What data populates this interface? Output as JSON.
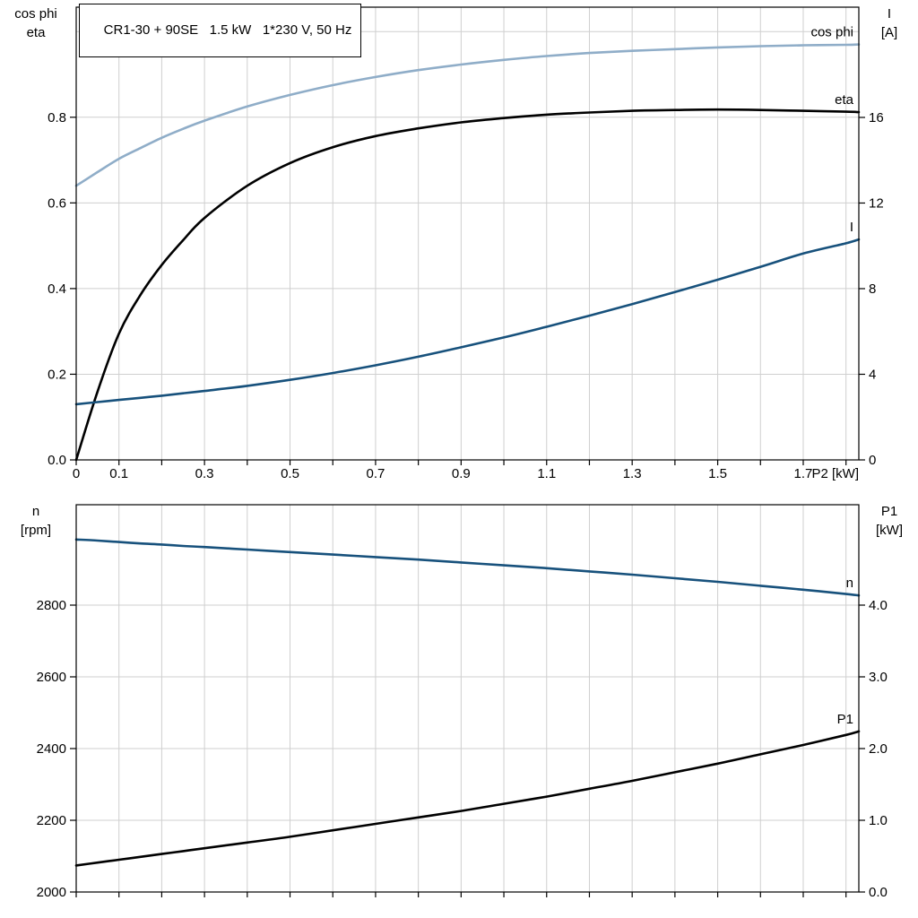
{
  "title_box": {
    "text": "CR1-30 + 90SE   1.5 kW   1*230 V, 50 Hz"
  },
  "colors": {
    "light_blue": "#8FADC8",
    "dark_blue": "#17517C",
    "black": "#000000",
    "grid": "#CFCFCF",
    "axis": "#000000"
  },
  "chart_data": [
    {
      "type": "line",
      "name": "motor-performance-curves",
      "x_axis": {
        "label": "P2 [kW]",
        "range": [
          0,
          1.83
        ],
        "grid_step": 0.1,
        "tick_values": [
          0,
          0.1,
          0.3,
          0.5,
          0.7,
          0.9,
          1.1,
          1.3,
          1.5,
          1.7
        ],
        "tick_labels": [
          "0",
          "0.1",
          "0.3",
          "0.5",
          "0.7",
          "0.9",
          "1.1",
          "1.3",
          "1.5",
          "1.7"
        ]
      },
      "left_axis": {
        "label_lines": [
          "cos phi",
          "eta"
        ],
        "range": [
          0,
          1.057
        ],
        "tick_values": [
          0,
          0.2,
          0.4,
          0.6,
          0.8
        ],
        "tick_labels": [
          "0.0",
          "0.2",
          "0.4",
          "0.6",
          "0.8"
        ],
        "grid_values": [
          0.2,
          0.4,
          0.6,
          0.8,
          1.0
        ]
      },
      "right_axis": {
        "label_lines": [
          "I",
          "[A]"
        ],
        "range": [
          0,
          21.15
        ],
        "tick_values": [
          0,
          4,
          8,
          12,
          16
        ],
        "tick_labels": [
          "0",
          "4",
          "8",
          "12",
          "16"
        ]
      },
      "x": [
        0,
        0.05,
        0.1,
        0.15,
        0.2,
        0.25,
        0.3,
        0.4,
        0.5,
        0.6,
        0.7,
        0.8,
        0.9,
        1.0,
        1.1,
        1.2,
        1.3,
        1.4,
        1.5,
        1.6,
        1.7,
        1.8,
        1.83
      ],
      "series": [
        {
          "name": "cos phi",
          "axis": "left",
          "color_key": "light_blue",
          "values": [
            0.64,
            0.672,
            0.703,
            0.728,
            0.752,
            0.773,
            0.792,
            0.825,
            0.852,
            0.875,
            0.894,
            0.91,
            0.923,
            0.934,
            0.943,
            0.95,
            0.955,
            0.959,
            0.963,
            0.966,
            0.968,
            0.969,
            0.97
          ]
        },
        {
          "name": "eta",
          "axis": "left",
          "color_key": "black",
          "values": [
            0.0,
            0.16,
            0.295,
            0.385,
            0.455,
            0.513,
            0.565,
            0.64,
            0.693,
            0.73,
            0.756,
            0.774,
            0.788,
            0.798,
            0.806,
            0.811,
            0.815,
            0.817,
            0.818,
            0.817,
            0.815,
            0.813,
            0.812
          ]
        },
        {
          "name": "I",
          "axis": "right",
          "color_key": "dark_blue",
          "values": [
            2.6,
            2.7,
            2.8,
            2.9,
            3.0,
            3.11,
            3.22,
            3.46,
            3.74,
            4.06,
            4.42,
            4.82,
            5.26,
            5.72,
            6.22,
            6.74,
            7.28,
            7.84,
            8.42,
            9.02,
            9.64,
            10.12,
            10.3
          ]
        }
      ]
    },
    {
      "type": "line",
      "name": "motor-speed-and-input-power",
      "x_axis": {
        "label": "",
        "range": [
          0,
          1.83
        ],
        "grid_step": 0.1,
        "tick_values": [
          0,
          0.1,
          0.3,
          0.5,
          0.7,
          0.9,
          1.1,
          1.3,
          1.5,
          1.7
        ],
        "tick_labels": []
      },
      "left_axis": {
        "label_lines": [
          "n",
          "[rpm]"
        ],
        "range": [
          2000,
          3080
        ],
        "tick_values": [
          2000,
          2200,
          2400,
          2600,
          2800
        ],
        "tick_labels": [
          "2000",
          "2200",
          "2400",
          "2600",
          "2800"
        ],
        "grid_values": [
          2200,
          2400,
          2600,
          2800
        ]
      },
      "right_axis": {
        "label_lines": [
          "P1",
          "[kW]"
        ],
        "range": [
          0,
          5.4
        ],
        "tick_values": [
          0,
          1,
          2,
          3,
          4
        ],
        "tick_labels": [
          "0.0",
          "1.0",
          "2.0",
          "3.0",
          "4.0"
        ]
      },
      "x": [
        0,
        0.05,
        0.1,
        0.15,
        0.2,
        0.25,
        0.3,
        0.4,
        0.5,
        0.6,
        0.7,
        0.8,
        0.9,
        1.0,
        1.1,
        1.2,
        1.3,
        1.4,
        1.5,
        1.6,
        1.7,
        1.8,
        1.83
      ],
      "series": [
        {
          "name": "n",
          "axis": "left",
          "color_key": "dark_blue",
          "values": [
            2983,
            2980,
            2976,
            2972,
            2969,
            2965,
            2962,
            2955,
            2948,
            2941,
            2934,
            2927,
            2919,
            2911,
            2903,
            2894,
            2885,
            2875,
            2865,
            2854,
            2843,
            2831,
            2827
          ]
        },
        {
          "name": "P1",
          "axis": "right",
          "color_key": "black",
          "values": [
            0.37,
            0.41,
            0.45,
            0.49,
            0.53,
            0.57,
            0.61,
            0.69,
            0.77,
            0.86,
            0.95,
            1.04,
            1.13,
            1.23,
            1.33,
            1.44,
            1.55,
            1.67,
            1.79,
            1.92,
            2.05,
            2.19,
            2.24
          ]
        }
      ]
    }
  ]
}
